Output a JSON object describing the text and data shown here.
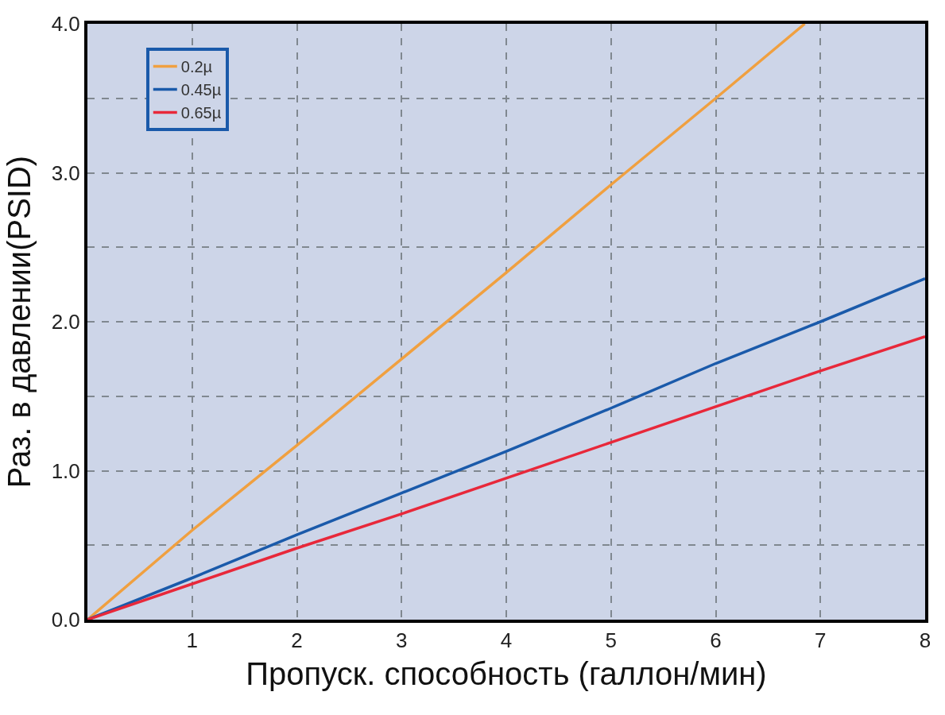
{
  "chart_data": {
    "type": "line",
    "xlabel": "Пропуск. способность (галлон/мин)",
    "ylabel": "Раз. в давлении(PSID)",
    "xlim": [
      0,
      8
    ],
    "ylim": [
      0,
      4
    ],
    "xticks": [
      1,
      2,
      3,
      4,
      5,
      6,
      7,
      8
    ],
    "yticks": [
      {
        "value": 0,
        "label": "0.0"
      },
      {
        "value": 0.5,
        "label": null
      },
      {
        "value": 1,
        "label": "1.0"
      },
      {
        "value": 1.5,
        "label": null
      },
      {
        "value": 2,
        "label": "2.0"
      },
      {
        "value": 2.5,
        "label": null
      },
      {
        "value": 3,
        "label": "3.0"
      },
      {
        "value": 3.5,
        "label": null
      },
      {
        "value": 4,
        "label": "4.0"
      }
    ],
    "grid": true,
    "legend": "top left",
    "line_style": "solid",
    "marker": "none",
    "series": [
      {
        "name": "0.2µ",
        "color": "#f0a040",
        "x": [
          0,
          1,
          2,
          3,
          4,
          5,
          6,
          6.85
        ],
        "values": [
          0,
          0.6,
          1.17,
          1.75,
          2.33,
          2.92,
          3.5,
          4.0
        ]
      },
      {
        "name": "0.45µ",
        "color": "#1a5aaa",
        "x": [
          0,
          1,
          2,
          3,
          4,
          5,
          6,
          7,
          8
        ],
        "values": [
          0,
          0.28,
          0.57,
          0.85,
          1.13,
          1.42,
          1.72,
          2.0,
          2.29
        ]
      },
      {
        "name": "0.65µ",
        "color": "#e8283a",
        "x": [
          0,
          1,
          2,
          3,
          4,
          5,
          6,
          7,
          8
        ],
        "values": [
          0,
          0.24,
          0.48,
          0.71,
          0.95,
          1.19,
          1.43,
          1.67,
          1.9
        ]
      }
    ]
  }
}
